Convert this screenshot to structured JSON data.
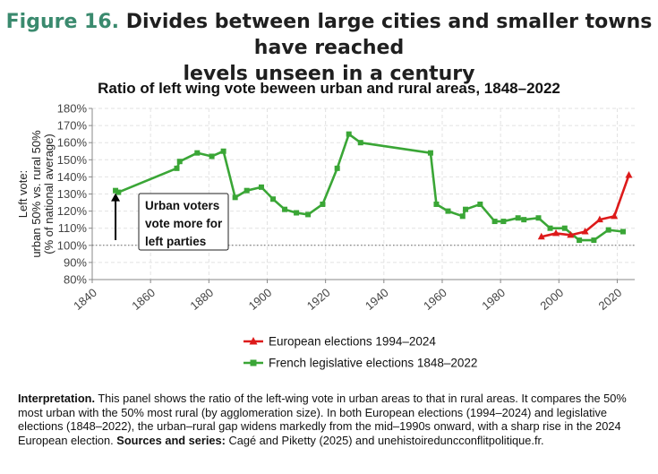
{
  "figure": {
    "number": "Figure 16.",
    "title_line1": "Divides between large cities and smaller towns have reached",
    "title_line2": "levels unseen in a century"
  },
  "chart_data": {
    "type": "line",
    "title": "Ratio of left wing vote beween urban and rural areas, 1848–2022",
    "ylabel_lines": [
      "Left vote:",
      "urban 50% vs. rural 50%",
      "(% of national average)"
    ],
    "xlabel": "",
    "xlim": [
      1840,
      2026
    ],
    "ylim": [
      80,
      180
    ],
    "x_ticks": [
      1840,
      1860,
      1880,
      1900,
      1920,
      1940,
      1960,
      1980,
      2000,
      2020
    ],
    "y_ticks": [
      80,
      90,
      100,
      110,
      120,
      130,
      140,
      150,
      160,
      170,
      180
    ],
    "y_tick_labels": [
      "80%",
      "90%",
      "100%",
      "110%",
      "120%",
      "130%",
      "140%",
      "150%",
      "160%",
      "170%",
      "180%"
    ],
    "grid": true,
    "reference_line": 100,
    "legend_position": "bottom-center",
    "series": [
      {
        "name": "French legislative elections 1848–2022",
        "color": "#3aa636",
        "marker": "square",
        "x": [
          1848,
          1849,
          1869,
          1870,
          1876,
          1881,
          1885,
          1889,
          1893,
          1898,
          1902,
          1906,
          1910,
          1914,
          1919,
          1924,
          1928,
          1932,
          1956,
          1958,
          1962,
          1967,
          1968,
          1973,
          1978,
          1981,
          1986,
          1988,
          1993,
          1997,
          2002,
          2007,
          2012,
          2017,
          2022
        ],
        "y": [
          132,
          131,
          145,
          149,
          154,
          152,
          155,
          128,
          132,
          134,
          127,
          121,
          119,
          118,
          124,
          145,
          165,
          160,
          154,
          124,
          120,
          117,
          121,
          124,
          114,
          114,
          116,
          115,
          116,
          110,
          110,
          103,
          103,
          109,
          108
        ]
      },
      {
        "name": "European elections 1994–2024",
        "color": "#dd1a1a",
        "marker": "triangle",
        "x": [
          1994,
          1999,
          2004,
          2009,
          2014,
          2019,
          2024
        ],
        "y": [
          105,
          107,
          106,
          108,
          115,
          117,
          141
        ]
      }
    ],
    "annotation": {
      "lines": [
        "Urban voters",
        "vote more for",
        "left parties"
      ],
      "arrow_from_y": 102,
      "arrow_to_y": 131,
      "arrow_x": 1848
    }
  },
  "interpretation": {
    "lead": "Interpretation.",
    "text": " This panel shows the ratio of the left-wing vote in urban areas to that in rural areas. It compares the 50% most urban with the 50% most rural (by agglomeration size). In both European elections (1994–2024) and legislative elections (1848–2022), the urban–rural gap widens markedly from the mid–1990s onward, with a sharp rise in the 2024 European election.",
    "sources_label": "Sources and series:",
    "sources_text": " Cagé and Piketty (2025) and unehistoireduncconflitpolitique.fr."
  }
}
